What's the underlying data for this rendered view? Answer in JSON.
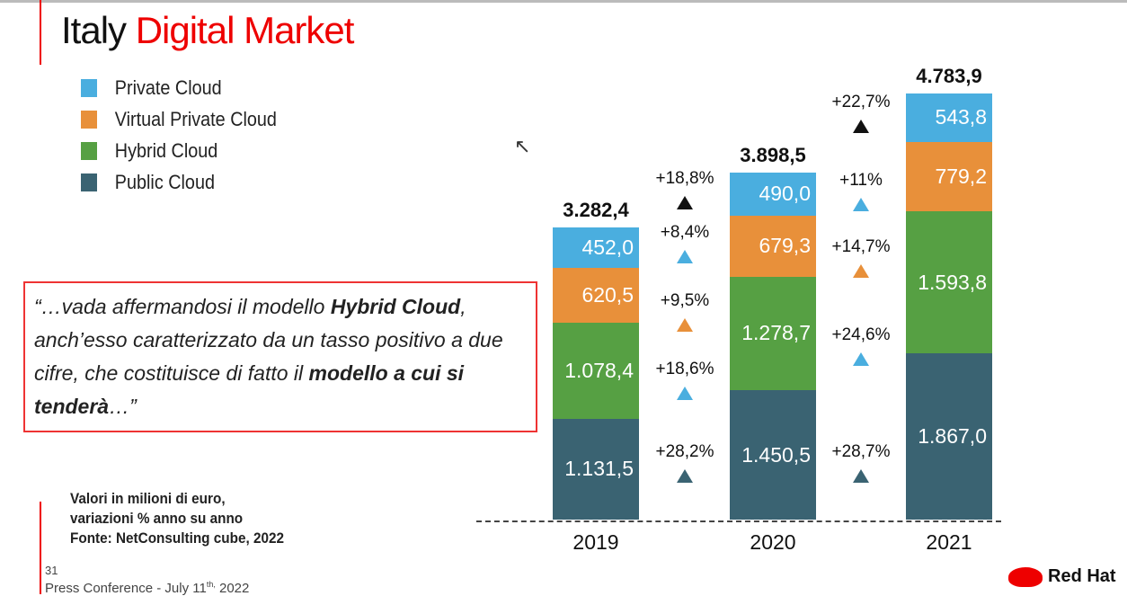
{
  "title": {
    "part1": "Italy ",
    "part2": "Digital Market"
  },
  "legend": [
    {
      "label": "Private Cloud",
      "color": "#4aaedf"
    },
    {
      "label": "Virtual Private Cloud",
      "color": "#e8903a"
    },
    {
      "label": "Hybrid Cloud",
      "color": "#56a043"
    },
    {
      "label": "Public Cloud",
      "color": "#3a6372"
    }
  ],
  "quote": {
    "t1": "“…vada affermandosi il modello ",
    "b1": "Hybrid Cloud",
    "t2": ", anch’esso caratterizzato da un tasso positivo a due cifre, che costituisce di fatto il ",
    "b2": "modello a cui si tenderà",
    "t3": "…”"
  },
  "note": [
    "Valori in milioni di euro,",
    "variazioni % anno su anno",
    "Fonte: NetConsulting cube, 2022"
  ],
  "footer": {
    "page": "31",
    "conf": "Press Conference - July  11",
    "sup": "th,",
    "year": " 2022"
  },
  "brand": "Red Hat",
  "chart_data": {
    "type": "stacked-bar",
    "categories": [
      "2019",
      "2020",
      "2021"
    ],
    "series": [
      {
        "name": "Public Cloud",
        "color": "#3a6372",
        "values": [
          1131.5,
          1450.5,
          1867.0
        ],
        "labels": [
          "1.131,5",
          "1.450,5",
          "1.867,0"
        ],
        "growth": [
          "+28,2%",
          "+28,7%"
        ]
      },
      {
        "name": "Hybrid Cloud",
        "color": "#56a043",
        "values": [
          1078.4,
          1278.7,
          1593.8
        ],
        "labels": [
          "1.078,4",
          "1.278,7",
          "1.593,8"
        ],
        "growth": [
          "+18,6%",
          "+24,6%"
        ]
      },
      {
        "name": "Virtual Private Cloud",
        "color": "#e8903a",
        "values": [
          620.5,
          679.3,
          779.2
        ],
        "labels": [
          "620,5",
          "679,3",
          "779,2"
        ],
        "growth": [
          "+9,5%",
          "+14,7%"
        ]
      },
      {
        "name": "Private Cloud",
        "color": "#4aaedf",
        "values": [
          452.0,
          490.0,
          543.8
        ],
        "labels": [
          "452,0",
          "490,0",
          "543,8"
        ],
        "growth": [
          "+8,4%",
          "+11%"
        ]
      }
    ],
    "totals": {
      "values": [
        3282.4,
        3898.5,
        4783.9
      ],
      "labels": [
        "3.282,4",
        "3.898,5",
        "4.783,9"
      ],
      "growth": [
        "+18,8%",
        "+22,7%"
      ]
    },
    "growth_triangle_colors": {
      "total": "#111111",
      "Public Cloud": "#3a6372",
      "Hybrid Cloud": "#4aaedf",
      "Virtual Private Cloud": "#e8903a",
      "Private Cloud": "#4aaedf"
    },
    "unit": "milioni di euro"
  }
}
